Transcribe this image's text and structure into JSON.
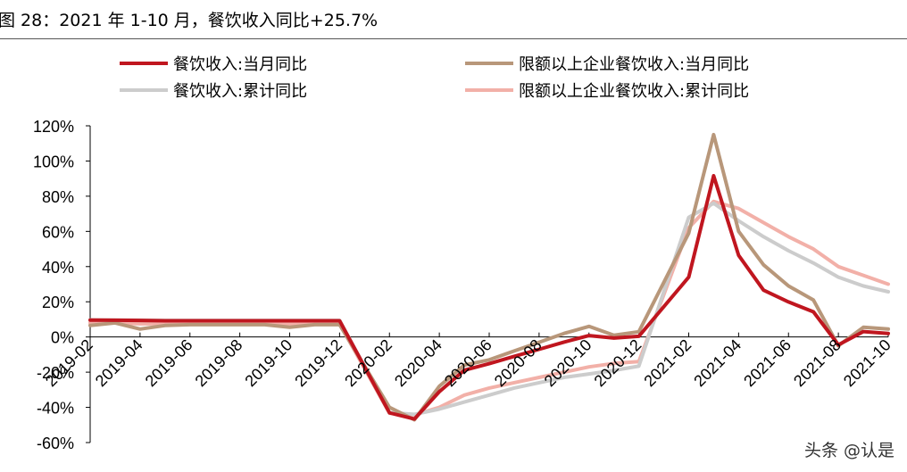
{
  "figure": {
    "title": "图 28：2021 年 1-10 月，餐饮收入同比+25.7%",
    "watermark": "头条 @认是"
  },
  "colors": {
    "retail_monthly": "#c0161f",
    "large_monthly": "#b8977a",
    "retail_cumulative": "#cccccc",
    "large_cumulative": "#f2b0a8"
  },
  "chart_data": {
    "type": "line",
    "x": [
      "2019-02",
      "2019-03",
      "2019-04",
      "2019-05",
      "2019-06",
      "2019-07",
      "2019-08",
      "2019-09",
      "2019-10",
      "2019-11",
      "2019-12",
      "2020-01",
      "2020-02",
      "2020-03",
      "2020-04",
      "2020-05",
      "2020-06",
      "2020-07",
      "2020-08",
      "2020-09",
      "2020-10",
      "2020-11",
      "2020-12",
      "2021-01",
      "2021-02",
      "2021-03",
      "2021-04",
      "2021-05",
      "2021-06",
      "2021-07",
      "2021-08",
      "2021-09",
      "2021-10"
    ],
    "x_tick_labels": [
      "2019-02",
      "2019-04",
      "2019-06",
      "2019-08",
      "2019-10",
      "2019-12",
      "2020-02",
      "2020-04",
      "2020-06",
      "2020-08",
      "2020-10",
      "2020-12",
      "2021-02",
      "2021-04",
      "2021-06",
      "2021-08",
      "2021-10"
    ],
    "y_tick_labels": [
      "120%",
      "100%",
      "80%",
      "60%",
      "40%",
      "20%",
      "0%",
      "-20%",
      "-40%",
      "-60%"
    ],
    "ylim": [
      -60,
      120
    ],
    "y_ticks": [
      120,
      100,
      80,
      60,
      40,
      20,
      0,
      -20,
      -40,
      -60
    ],
    "legend_position": "top",
    "series": [
      {
        "name": "限额以上企业餐饮收入:累计同比",
        "color_key": "large_cumulative",
        "values": [
          8,
          8,
          7.5,
          7.5,
          7.5,
          7.5,
          7.5,
          7.5,
          7.5,
          7.5,
          7.5,
          null,
          -43.3,
          -44.3,
          -40,
          -33,
          -29,
          -26,
          -23,
          -20,
          -17,
          -15,
          -14,
          null,
          62,
          77,
          73,
          65,
          57,
          50,
          40,
          35,
          30
        ]
      },
      {
        "name": "餐饮收入:累计同比",
        "color_key": "retail_cumulative",
        "values": [
          9.7,
          9.6,
          9.5,
          9.4,
          9.4,
          9.4,
          9.4,
          9.4,
          9.4,
          9.4,
          9.4,
          null,
          -43,
          -44,
          -41,
          -37,
          -33,
          -29,
          -26,
          -23,
          -21,
          -19,
          -16.6,
          null,
          68,
          76,
          66,
          57,
          49,
          42,
          34,
          29,
          25.7
        ]
      },
      {
        "name": "限额以上企业餐饮收入:当月同比",
        "color_key": "large_monthly",
        "values": [
          6.5,
          8,
          4.5,
          6.5,
          7,
          7,
          7,
          7,
          5.5,
          7,
          7,
          null,
          -40,
          -47,
          -28,
          -16,
          -13,
          -8,
          -3,
          2,
          6,
          1,
          3,
          null,
          59,
          115,
          60,
          41,
          29,
          21,
          -5,
          5.5,
          4.5
        ]
      },
      {
        "name": "餐饮收入:当月同比",
        "color_key": "retail_monthly",
        "values": [
          9.6,
          9.5,
          9.4,
          9.2,
          9.2,
          9.2,
          9.2,
          9.2,
          9.2,
          9.2,
          9.2,
          null,
          -43.1,
          -46.6,
          -31.1,
          -18.9,
          -15.2,
          -11,
          -7,
          -2.9,
          0.8,
          -0.6,
          0.4,
          null,
          34,
          91.6,
          46.4,
          26.6,
          19.9,
          14.3,
          -4.5,
          3.1,
          2
        ]
      }
    ],
    "legend": [
      {
        "label": "餐饮收入:当月同比",
        "color_key": "retail_monthly",
        "col": 0,
        "row": 0
      },
      {
        "label": "限额以上企业餐饮收入:当月同比",
        "color_key": "large_monthly",
        "col": 1,
        "row": 0
      },
      {
        "label": "餐饮收入:累计同比",
        "color_key": "retail_cumulative",
        "col": 0,
        "row": 1
      },
      {
        "label": "限额以上企业餐饮收入:累计同比",
        "color_key": "large_cumulative",
        "col": 1,
        "row": 1
      }
    ]
  }
}
